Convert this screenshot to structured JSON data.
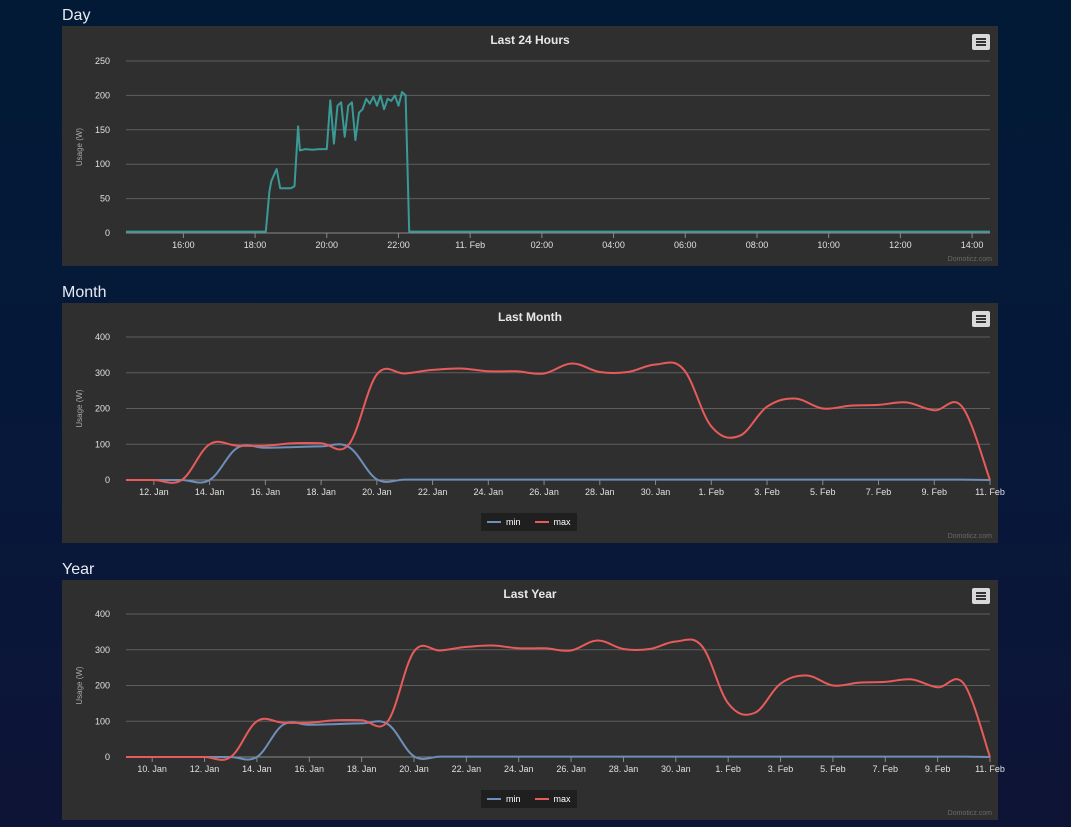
{
  "sections": [
    {
      "heading": "Day"
    },
    {
      "heading": "Month"
    },
    {
      "heading": "Year"
    }
  ],
  "credit": "Domoticz.com",
  "colors": {
    "usage": "#3a9a96",
    "min": "#6d8fba",
    "max": "#e85b5b",
    "panel": "#2f2f30"
  },
  "chart_data": [
    {
      "type": "line",
      "title": "Last 24 Hours",
      "ylabel": "Usage (W)",
      "ylim": [
        0,
        250
      ],
      "yticks": [
        0,
        50,
        100,
        150,
        200,
        250
      ],
      "xlim": [
        14.4,
        38.5
      ],
      "xticks": [
        {
          "x": 16,
          "label": "16:00"
        },
        {
          "x": 18,
          "label": "18:00"
        },
        {
          "x": 20,
          "label": "20:00"
        },
        {
          "x": 22,
          "label": "22:00"
        },
        {
          "x": 24,
          "label": "11. Feb"
        },
        {
          "x": 26,
          "label": "02:00"
        },
        {
          "x": 28,
          "label": "04:00"
        },
        {
          "x": 30,
          "label": "06:00"
        },
        {
          "x": 32,
          "label": "08:00"
        },
        {
          "x": 34,
          "label": "10:00"
        },
        {
          "x": 36,
          "label": "12:00"
        },
        {
          "x": 38,
          "label": "14:00"
        }
      ],
      "legend": false,
      "series": [
        {
          "color": "#3a9a96",
          "x": [
            14.4,
            18.3,
            18.4,
            18.45,
            18.6,
            18.7,
            18.8,
            19.0,
            19.1,
            19.2,
            19.25,
            19.4,
            19.6,
            19.8,
            20.0,
            20.1,
            20.2,
            20.3,
            20.4,
            20.5,
            20.6,
            20.7,
            20.8,
            20.9,
            21.0,
            21.1,
            21.2,
            21.3,
            21.4,
            21.5,
            21.6,
            21.7,
            21.8,
            21.9,
            22.0,
            22.1,
            22.2,
            22.3,
            22.45,
            22.6,
            38.5
          ],
          "y": [
            2,
            2,
            60,
            75,
            93,
            65,
            65,
            65,
            68,
            155,
            120,
            122,
            121,
            122,
            122,
            193,
            130,
            185,
            190,
            140,
            185,
            190,
            135,
            175,
            180,
            195,
            188,
            198,
            185,
            200,
            180,
            195,
            192,
            200,
            185,
            205,
            200,
            2,
            2,
            2,
            2
          ]
        }
      ]
    },
    {
      "type": "line",
      "title": "Last Month",
      "ylabel": "Usage (W)",
      "ylim": [
        0,
        400
      ],
      "yticks": [
        0,
        100,
        200,
        300,
        400
      ],
      "xlim": [
        11,
        42
      ],
      "xticks": [
        {
          "x": 12,
          "label": "12. Jan"
        },
        {
          "x": 14,
          "label": "14. Jan"
        },
        {
          "x": 16,
          "label": "16. Jan"
        },
        {
          "x": 18,
          "label": "18. Jan"
        },
        {
          "x": 20,
          "label": "20. Jan"
        },
        {
          "x": 22,
          "label": "22. Jan"
        },
        {
          "x": 24,
          "label": "24. Jan"
        },
        {
          "x": 26,
          "label": "26. Jan"
        },
        {
          "x": 28,
          "label": "28. Jan"
        },
        {
          "x": 30,
          "label": "30. Jan"
        },
        {
          "x": 32,
          "label": "1. Feb"
        },
        {
          "x": 34,
          "label": "3. Feb"
        },
        {
          "x": 36,
          "label": "5. Feb"
        },
        {
          "x": 38,
          "label": "7. Feb"
        },
        {
          "x": 40,
          "label": "9. Feb"
        },
        {
          "x": 42,
          "label": "11. Feb"
        }
      ],
      "legend": true,
      "series": [
        {
          "name": "min",
          "color": "#6d8fba",
          "x": [
            11,
            12,
            13,
            14,
            15,
            16,
            17,
            18,
            19,
            20,
            21,
            22,
            23,
            24,
            25,
            26,
            27,
            28,
            29,
            30,
            31,
            32,
            33,
            34,
            35,
            36,
            37,
            38,
            39,
            40,
            41,
            42
          ],
          "y": [
            0,
            0,
            0,
            0,
            90,
            90,
            92,
            94,
            92,
            2,
            1,
            1,
            1,
            1,
            1,
            1,
            1,
            1,
            1,
            1,
            1,
            1,
            1,
            1,
            1,
            1,
            1,
            1,
            1,
            1,
            1,
            0
          ]
        },
        {
          "name": "max",
          "color": "#e85b5b",
          "x": [
            11,
            12,
            13,
            14,
            15,
            16,
            17,
            18,
            19,
            20,
            21,
            22,
            23,
            24,
            25,
            26,
            27,
            28,
            29,
            30,
            31,
            32,
            33,
            34,
            35,
            36,
            37,
            38,
            39,
            40,
            41,
            42
          ],
          "y": [
            0,
            0,
            0,
            100,
            96,
            96,
            103,
            103,
            100,
            295,
            298,
            308,
            312,
            304,
            304,
            298,
            326,
            302,
            302,
            323,
            310,
            150,
            123,
            205,
            228,
            200,
            208,
            210,
            217,
            195,
            205,
            0
          ]
        }
      ]
    },
    {
      "type": "line",
      "title": "Last Year",
      "ylabel": "Usage (W)",
      "ylim": [
        0,
        400
      ],
      "yticks": [
        0,
        100,
        200,
        300,
        400
      ],
      "xlim": [
        9,
        42
      ],
      "xticks": [
        {
          "x": 10,
          "label": "10. Jan"
        },
        {
          "x": 12,
          "label": "12. Jan"
        },
        {
          "x": 14,
          "label": "14. Jan"
        },
        {
          "x": 16,
          "label": "16. Jan"
        },
        {
          "x": 18,
          "label": "18. Jan"
        },
        {
          "x": 20,
          "label": "20. Jan"
        },
        {
          "x": 22,
          "label": "22. Jan"
        },
        {
          "x": 24,
          "label": "24. Jan"
        },
        {
          "x": 26,
          "label": "26. Jan"
        },
        {
          "x": 28,
          "label": "28. Jan"
        },
        {
          "x": 30,
          "label": "30. Jan"
        },
        {
          "x": 32,
          "label": "1. Feb"
        },
        {
          "x": 34,
          "label": "3. Feb"
        },
        {
          "x": 36,
          "label": "5. Feb"
        },
        {
          "x": 38,
          "label": "7. Feb"
        },
        {
          "x": 40,
          "label": "9. Feb"
        },
        {
          "x": 42,
          "label": "11. Feb"
        }
      ],
      "legend": true,
      "series": [
        {
          "name": "min",
          "color": "#6d8fba",
          "x": [
            9,
            10,
            11,
            12,
            13,
            14,
            15,
            16,
            17,
            18,
            19,
            20,
            21,
            22,
            23,
            24,
            25,
            26,
            27,
            28,
            29,
            30,
            31,
            32,
            33,
            34,
            35,
            36,
            37,
            38,
            39,
            40,
            41,
            42
          ],
          "y": [
            0,
            0,
            0,
            0,
            0,
            0,
            90,
            90,
            92,
            94,
            92,
            2,
            1,
            1,
            1,
            1,
            1,
            1,
            1,
            1,
            1,
            1,
            1,
            1,
            1,
            1,
            1,
            1,
            1,
            1,
            1,
            1,
            1,
            0
          ]
        },
        {
          "name": "max",
          "color": "#e85b5b",
          "x": [
            9,
            10,
            11,
            12,
            13,
            14,
            15,
            16,
            17,
            18,
            19,
            20,
            21,
            22,
            23,
            24,
            25,
            26,
            27,
            28,
            29,
            30,
            31,
            32,
            33,
            34,
            35,
            36,
            37,
            38,
            39,
            40,
            41,
            42
          ],
          "y": [
            0,
            0,
            0,
            0,
            0,
            100,
            96,
            96,
            103,
            103,
            100,
            295,
            298,
            308,
            312,
            304,
            304,
            298,
            326,
            302,
            302,
            323,
            310,
            150,
            123,
            205,
            228,
            200,
            208,
            210,
            217,
            195,
            205,
            0
          ]
        }
      ]
    }
  ]
}
